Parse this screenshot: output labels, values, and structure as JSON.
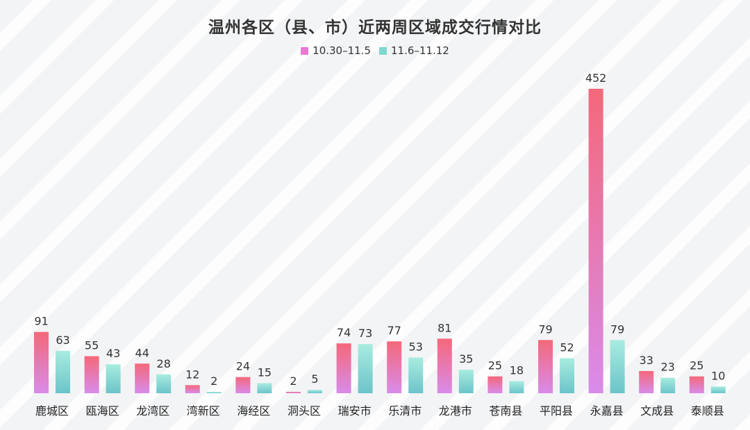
{
  "title": "温州各区（县、市）近两周区域成交行情对比",
  "colors": {
    "series1_top": "#f4687a",
    "series1_bottom": "#d98bea",
    "series2_top": "#a8ece0",
    "series2_bottom": "#6cc4c9",
    "legend1": "#e87ad6",
    "legend2": "#7fd8d0"
  },
  "chart_data": {
    "type": "bar",
    "title": "温州各区（县、市）近两周区域成交行情对比",
    "xlabel": "",
    "ylabel": "",
    "ylim": [
      0,
      452
    ],
    "grid": false,
    "legend_position": "top-center",
    "categories": [
      "鹿城区",
      "瓯海区",
      "龙湾区",
      "湾新区",
      "海经区",
      "洞头区",
      "瑞安市",
      "乐清市",
      "龙港市",
      "苍南县",
      "平阳县",
      "永嘉县",
      "文成县",
      "泰顺县"
    ],
    "series": [
      {
        "name": "10.30–11.5",
        "values": [
          91,
          55,
          44,
          12,
          24,
          2,
          74,
          77,
          81,
          25,
          79,
          452,
          33,
          25
        ]
      },
      {
        "name": "11.6–11.12",
        "values": [
          63,
          43,
          28,
          2,
          15,
          5,
          73,
          53,
          35,
          18,
          52,
          79,
          23,
          10
        ]
      }
    ]
  }
}
